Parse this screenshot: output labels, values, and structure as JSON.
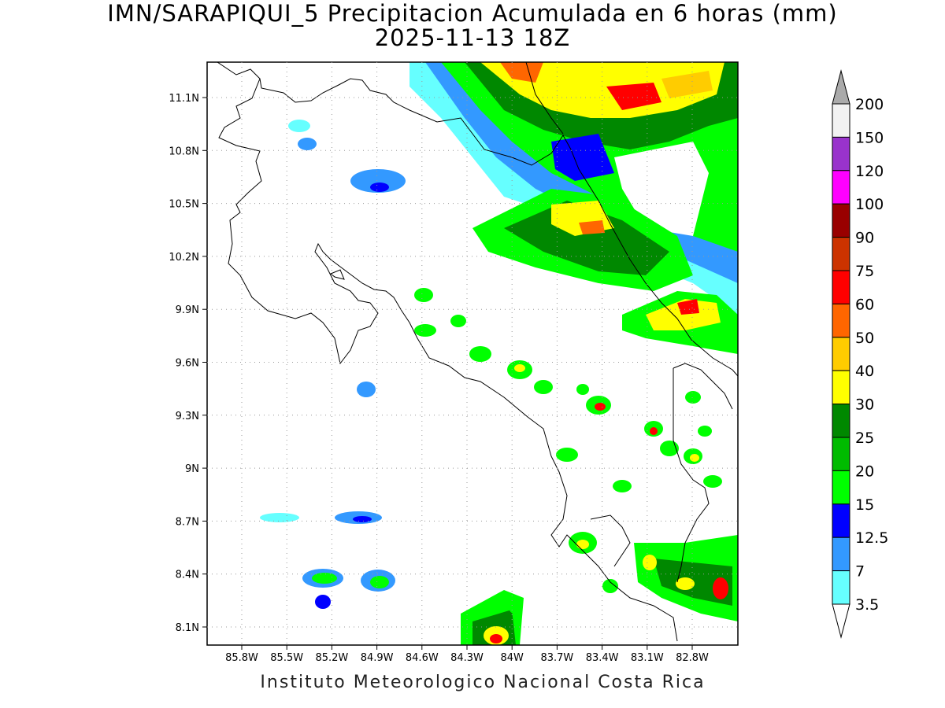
{
  "map": {
    "title_line1": "IMN/SARAPIQUI_5 Precipitacion Acumulada en 6 horas (mm)",
    "title_line2": "2025-11-13 18Z",
    "footer": "Instituto Meteorologico Nacional Costa Rica",
    "lat_ticks": [
      "11.1N",
      "10.8N",
      "10.5N",
      "10.2N",
      "9.9N",
      "9.6N",
      "9.3N",
      "9N",
      "8.7N",
      "8.4N",
      "8.1N"
    ],
    "lon_ticks": [
      "85.8W",
      "85.5W",
      "85.2W",
      "84.9W",
      "84.6W",
      "84.3W",
      "84W",
      "83.7W",
      "83.4W",
      "83.1W",
      "82.8W"
    ]
  },
  "colorbar": {
    "labels": [
      "200",
      "150",
      "120",
      "100",
      "90",
      "75",
      "60",
      "50",
      "40",
      "30",
      "25",
      "20",
      "15",
      "12.5",
      "7",
      "3.5"
    ],
    "top_color": "#aaaaaa",
    "colors": [
      "#f2f2f2",
      "#9933cc",
      "#ff00ff",
      "#990000",
      "#cc3300",
      "#ff0000",
      "#ff6600",
      "#ffcc00",
      "#ffff00",
      "#008800",
      "#00bb00",
      "#00ff00",
      "#0000ff",
      "#3399ff",
      "#66ffff"
    ],
    "bottom_color": "#ffffff"
  }
}
